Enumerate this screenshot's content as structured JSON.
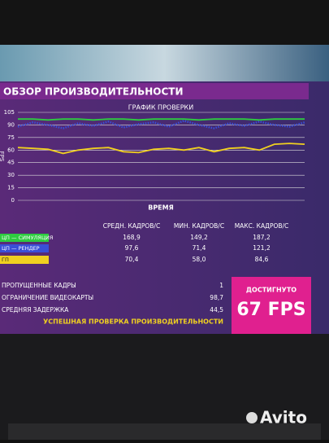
{
  "header": {
    "title": "ОБЗОР ПРОИЗВОДИТЕЛЬНОСТИ"
  },
  "chart_data": {
    "type": "line",
    "title": "ГРАФИК ПРОВЕРКИ",
    "x_label": "ВРЕМЯ",
    "y_label": "FPS",
    "ylim": [
      0,
      105
    ],
    "yticks": [
      0,
      15,
      30,
      45,
      60,
      75,
      90,
      105
    ],
    "grid": true,
    "series": [
      {
        "name": "ЦП — СИМУЛЯЦИЯ",
        "color": "#2ecc40",
        "values": [
          97,
          97,
          96,
          97,
          97,
          96,
          97,
          97,
          96,
          97,
          97,
          97,
          96,
          97,
          97,
          97,
          96,
          97,
          97,
          97
        ]
      },
      {
        "name": "ЦП — РЕНДЕР",
        "color": "#3a4fd8",
        "values": [
          88,
          93,
          90,
          86,
          92,
          89,
          94,
          87,
          91,
          93,
          88,
          95,
          90,
          86,
          92,
          89,
          94,
          90,
          88,
          93
        ]
      },
      {
        "name": "ГП",
        "color": "#f0d020",
        "values": [
          63,
          62,
          61,
          56,
          60,
          62,
          63,
          58,
          57,
          61,
          62,
          60,
          63,
          58,
          62,
          63,
          60,
          67,
          68,
          67
        ]
      }
    ]
  },
  "table": {
    "headers": [
      "СРЕДН. КАДРОВ/С",
      "МИН. КАДРОВ/С",
      "МАКС. КАДРОВ/С"
    ],
    "rows": [
      [
        "168,9",
        "149,2",
        "187,2"
      ],
      [
        "97,6",
        "71,4",
        "121,2"
      ],
      [
        "70,4",
        "58,0",
        "84,6"
      ]
    ]
  },
  "stats": [
    {
      "label": "ПРОПУЩЕННЫЕ КАДРЫ",
      "value": "1"
    },
    {
      "label": "ОГРАНИЧЕНИЕ ВИДЕОКАРТЫ",
      "value": "98,7"
    },
    {
      "label": "СРЕДНЯЯ ЗАДЕРЖКА",
      "value": "44,5"
    }
  ],
  "status": "УСПЕШНАЯ ПРОВЕРКА ПРОИЗВОДИТЕЛЬНОСТИ",
  "result": {
    "label": "ДОСТИГНУТО",
    "value": "67 FPS"
  },
  "watermark": "Avito"
}
